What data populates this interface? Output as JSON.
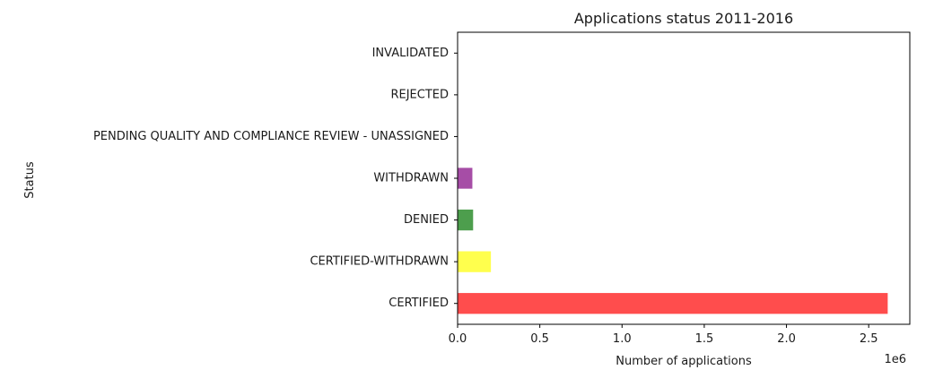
{
  "chart_data": {
    "type": "bar",
    "orientation": "horizontal",
    "title": "Applications status 2011-2016",
    "xlabel": "Number of applications",
    "ylabel": "Status",
    "x_offset_label": "1e6",
    "categories": [
      "CERTIFIED",
      "CERTIFIED-WITHDRAWN",
      "DENIED",
      "WITHDRAWN",
      "PENDING QUALITY AND COMPLIANCE REVIEW - UNASSIGNED",
      "REJECTED",
      "INVALIDATED"
    ],
    "values": [
      2615623,
      202659,
      94346,
      89799,
      15,
      2,
      1
    ],
    "colors": [
      "#ff4d4d",
      "#ffff4d",
      "#4d9e4d",
      "#a64da6",
      "#4d4dff",
      "#4d4dff",
      "#4d4dff"
    ],
    "xlim": [
      0,
      2750000
    ],
    "xticks": [
      0,
      500000,
      1000000,
      1500000,
      2000000,
      2500000
    ],
    "xtick_labels": [
      "0.0",
      "0.5",
      "1.0",
      "1.5",
      "2.0",
      "2.5"
    ],
    "grid": false,
    "legend": "none"
  }
}
